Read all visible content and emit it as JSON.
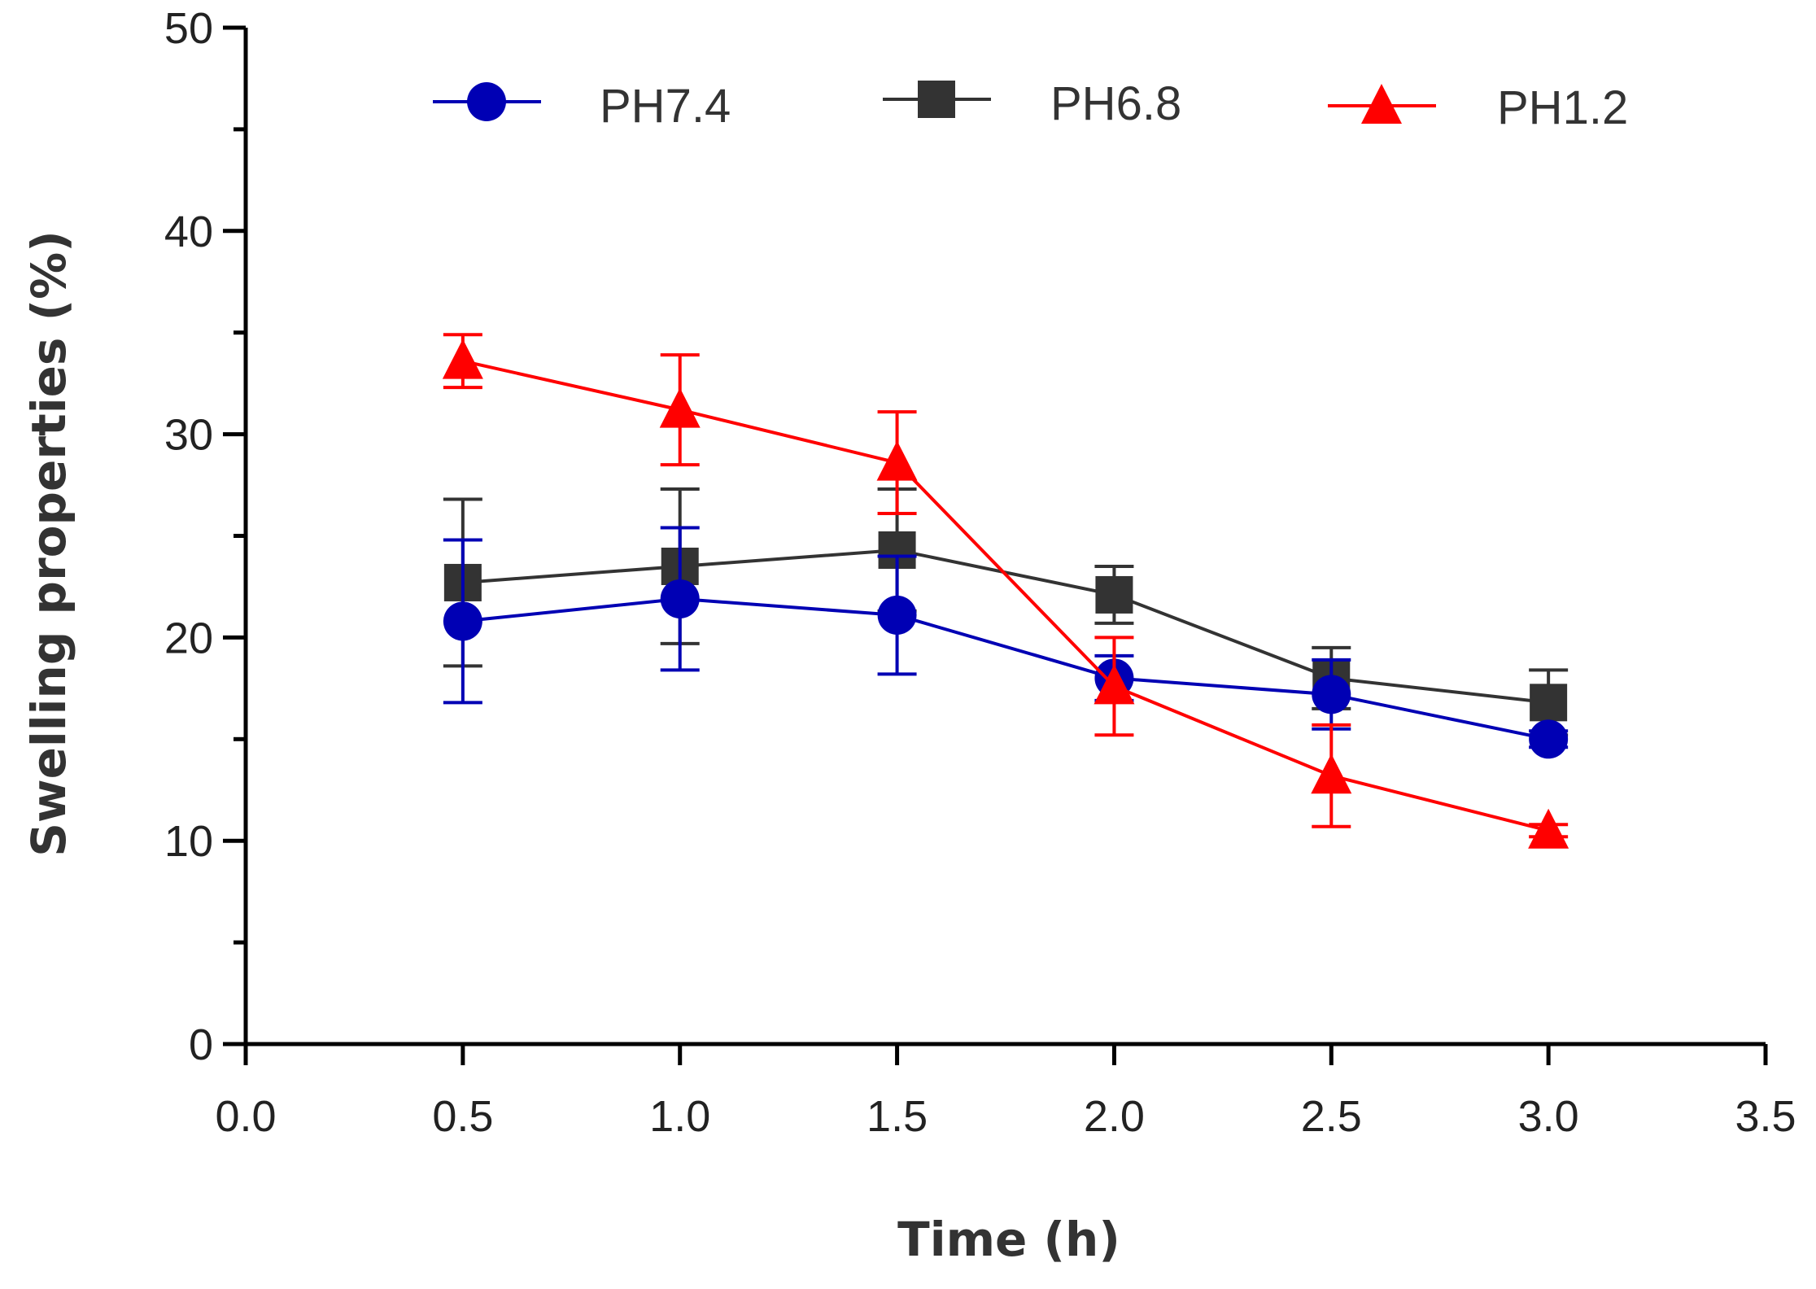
{
  "chart_data": {
    "type": "line",
    "title": "",
    "xlabel": "Time (h)",
    "ylabel": "Swelling properties (%)",
    "xlim": [
      0,
      3.5
    ],
    "ylim": [
      0,
      50
    ],
    "xticks": [
      0,
      0.5,
      1,
      1.5,
      2,
      2.5,
      3,
      3.5
    ],
    "xtick_labels": [
      "0.0",
      "0.5",
      "1.0",
      "1.5",
      "2.0",
      "2.5",
      "3.0",
      "3.5"
    ],
    "yticks": [
      0,
      10,
      20,
      30,
      40,
      50
    ],
    "ytick_labels": [
      "0",
      "10",
      "20",
      "30",
      "40",
      "50"
    ],
    "grid": false,
    "legend_position": "top",
    "x": [
      0.5,
      1.0,
      1.5,
      2.0,
      2.5,
      3.0
    ],
    "series": [
      {
        "name": "PH7.4",
        "color": "#0000b4",
        "marker": "circle",
        "values": [
          20.8,
          21.9,
          21.1,
          18.0,
          17.2,
          15.0
        ],
        "errors": [
          4.0,
          3.5,
          2.9,
          1.1,
          1.7,
          0.4
        ]
      },
      {
        "name": "PH6.8",
        "color": "#333333",
        "marker": "square",
        "values": [
          22.7,
          23.5,
          24.3,
          22.1,
          18.0,
          16.8
        ],
        "errors": [
          4.1,
          3.8,
          3.0,
          1.4,
          1.5,
          1.6
        ]
      },
      {
        "name": "PH1.2",
        "color": "#ff0000",
        "marker": "triangle",
        "values": [
          33.6,
          31.2,
          28.6,
          17.6,
          13.2,
          10.5
        ],
        "errors": [
          1.3,
          2.7,
          2.5,
          2.4,
          2.5,
          0.3
        ]
      }
    ]
  }
}
